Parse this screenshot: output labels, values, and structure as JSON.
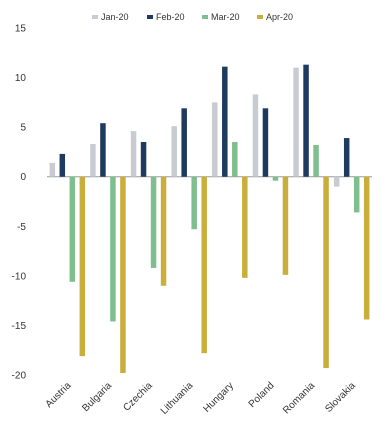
{
  "chart_data": {
    "type": "bar",
    "categories": [
      "Austria",
      "Bulgaria",
      "Czechia",
      "Lithuania",
      "Hungary",
      "Poland",
      "Romania",
      "Slovakia"
    ],
    "series": [
      {
        "name": "Jan-20",
        "color": "#c8ccd2",
        "values": [
          1.4,
          3.3,
          4.6,
          5.1,
          7.5,
          8.3,
          11.0,
          -1.0
        ]
      },
      {
        "name": "Feb-20",
        "color": "#1f3a5f",
        "values": [
          2.3,
          5.4,
          3.5,
          6.9,
          11.1,
          6.9,
          11.3,
          3.9
        ]
      },
      {
        "name": "Mar-20",
        "color": "#7fbf8f",
        "values": [
          -10.6,
          -14.6,
          -9.2,
          -5.3,
          3.5,
          -0.4,
          3.2,
          -3.6
        ]
      },
      {
        "name": "Apr-20",
        "color": "#c9ae3c",
        "values": [
          -18.1,
          -19.8,
          -11.0,
          -17.8,
          -10.2,
          -9.9,
          -19.3,
          -14.4
        ]
      }
    ],
    "yticks": [
      15,
      10,
      5,
      0,
      -5,
      -10,
      -15,
      -20
    ],
    "ylim": [
      -20,
      15
    ],
    "xlabel": "",
    "ylabel": "",
    "title": "",
    "grid": false,
    "legend_position": "top"
  }
}
